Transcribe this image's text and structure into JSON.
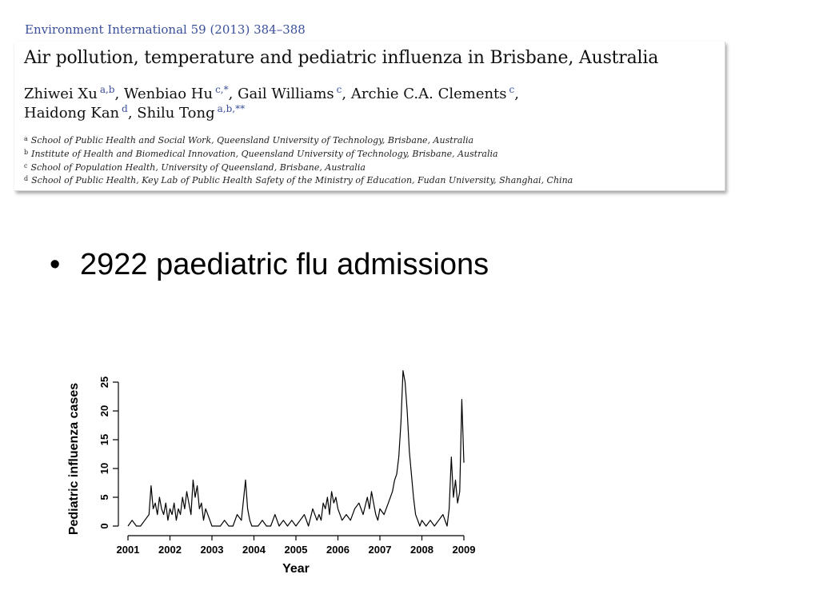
{
  "paper": {
    "citation": "Environment International 59 (2013) 384–388",
    "title": "Air pollution, temperature and pediatric influenza in Brisbane, Australia",
    "authors_line1": [
      {
        "name": "Zhiwei Xu",
        "sup": "a,b",
        "sep": ","
      },
      {
        "name": "Wenbiao Hu",
        "sup": "c,*",
        "sep": ","
      },
      {
        "name": "Gail Williams",
        "sup": "c",
        "sep": ","
      },
      {
        "name": "Archie C.A. Clements",
        "sup": "c",
        "sep": ","
      }
    ],
    "authors_line2": [
      {
        "name": "Haidong Kan",
        "sup": "d",
        "sep": ","
      },
      {
        "name": "Shilu Tong",
        "sup": "a,b,**",
        "sep": ""
      }
    ],
    "affiliations": [
      {
        "key": "a",
        "text": "School of Public Health and Social Work, Queensland University of Technology, Brisbane, Australia"
      },
      {
        "key": "b",
        "text": "Institute of Health and Biomedical Innovation, Queensland University of Technology, Brisbane, Australia"
      },
      {
        "key": "c",
        "text": "School of Population Health, University of Queensland, Brisbane, Australia"
      },
      {
        "key": "d",
        "text": "School of Public Health, Key Lab of Public Health Safety of the Ministry of Education, Fudan University, Shanghai, China"
      }
    ]
  },
  "bullet": {
    "symbol": "•",
    "text": "2922 paediatric flu admissions"
  },
  "chart_data": {
    "type": "line",
    "title": "",
    "xlabel": "Year",
    "ylabel": "Pediatric influenza cases",
    "xlim": [
      2001,
      2009
    ],
    "ylim": [
      0,
      25
    ],
    "x_ticks": [
      "2001",
      "2002",
      "2003",
      "2004",
      "2005",
      "2006",
      "2007",
      "2008",
      "2009"
    ],
    "y_ticks": [
      "0",
      "5",
      "10",
      "15",
      "20",
      "25"
    ],
    "grid": false,
    "series": [
      {
        "color": "#000000",
        "x": [
          2001.0,
          2001.1,
          2001.2,
          2001.3,
          2001.4,
          2001.5,
          2001.55,
          2001.6,
          2001.65,
          2001.7,
          2001.75,
          2001.8,
          2001.85,
          2001.9,
          2001.95,
          2002.0,
          2002.05,
          2002.1,
          2002.15,
          2002.2,
          2002.25,
          2002.3,
          2002.35,
          2002.4,
          2002.45,
          2002.5,
          2002.55,
          2002.6,
          2002.65,
          2002.7,
          2002.75,
          2002.8,
          2002.85,
          2002.9,
          2002.95,
          2003.0,
          2003.1,
          2003.2,
          2003.3,
          2003.4,
          2003.5,
          2003.6,
          2003.7,
          2003.8,
          2003.85,
          2003.9,
          2003.95,
          2004.0,
          2004.1,
          2004.2,
          2004.3,
          2004.4,
          2004.5,
          2004.6,
          2004.7,
          2004.8,
          2004.9,
          2005.0,
          2005.1,
          2005.2,
          2005.3,
          2005.4,
          2005.5,
          2005.55,
          2005.6,
          2005.65,
          2005.7,
          2005.75,
          2005.8,
          2005.85,
          2005.9,
          2005.95,
          2006.0,
          2006.1,
          2006.2,
          2006.3,
          2006.4,
          2006.5,
          2006.6,
          2006.7,
          2006.75,
          2006.8,
          2006.85,
          2006.9,
          2006.95,
          2007.0,
          2007.1,
          2007.2,
          2007.3,
          2007.35,
          2007.4,
          2007.45,
          2007.5,
          2007.55,
          2007.6,
          2007.65,
          2007.7,
          2007.75,
          2007.8,
          2007.85,
          2007.9,
          2007.95,
          2008.0,
          2008.1,
          2008.2,
          2008.3,
          2008.4,
          2008.5,
          2008.6,
          2008.65,
          2008.7,
          2008.75,
          2008.8,
          2008.85,
          2008.9,
          2008.95,
          2009.0
        ],
        "y": [
          0,
          1,
          0,
          0,
          1,
          2,
          7,
          3,
          4,
          2,
          5,
          3,
          2,
          4,
          1,
          3,
          2,
          4,
          1,
          3,
          2,
          5,
          3,
          6,
          4,
          2,
          8,
          5,
          7,
          3,
          4,
          1,
          3,
          2,
          1,
          0,
          0,
          0,
          1,
          0,
          0,
          2,
          1,
          8,
          3,
          1,
          0,
          0,
          0,
          1,
          0,
          0,
          2,
          0,
          1,
          0,
          1,
          0,
          1,
          2,
          0,
          3,
          1,
          2,
          1,
          4,
          3,
          5,
          2,
          6,
          4,
          5,
          3,
          1,
          2,
          1,
          3,
          4,
          2,
          5,
          3,
          6,
          4,
          2,
          1,
          3,
          2,
          4,
          6,
          8,
          9,
          12,
          18,
          27,
          25,
          20,
          13,
          9,
          5,
          2,
          1,
          0,
          1,
          0,
          1,
          0,
          1,
          2,
          0,
          3,
          12,
          5,
          8,
          4,
          6,
          22,
          11
        ]
      }
    ]
  }
}
